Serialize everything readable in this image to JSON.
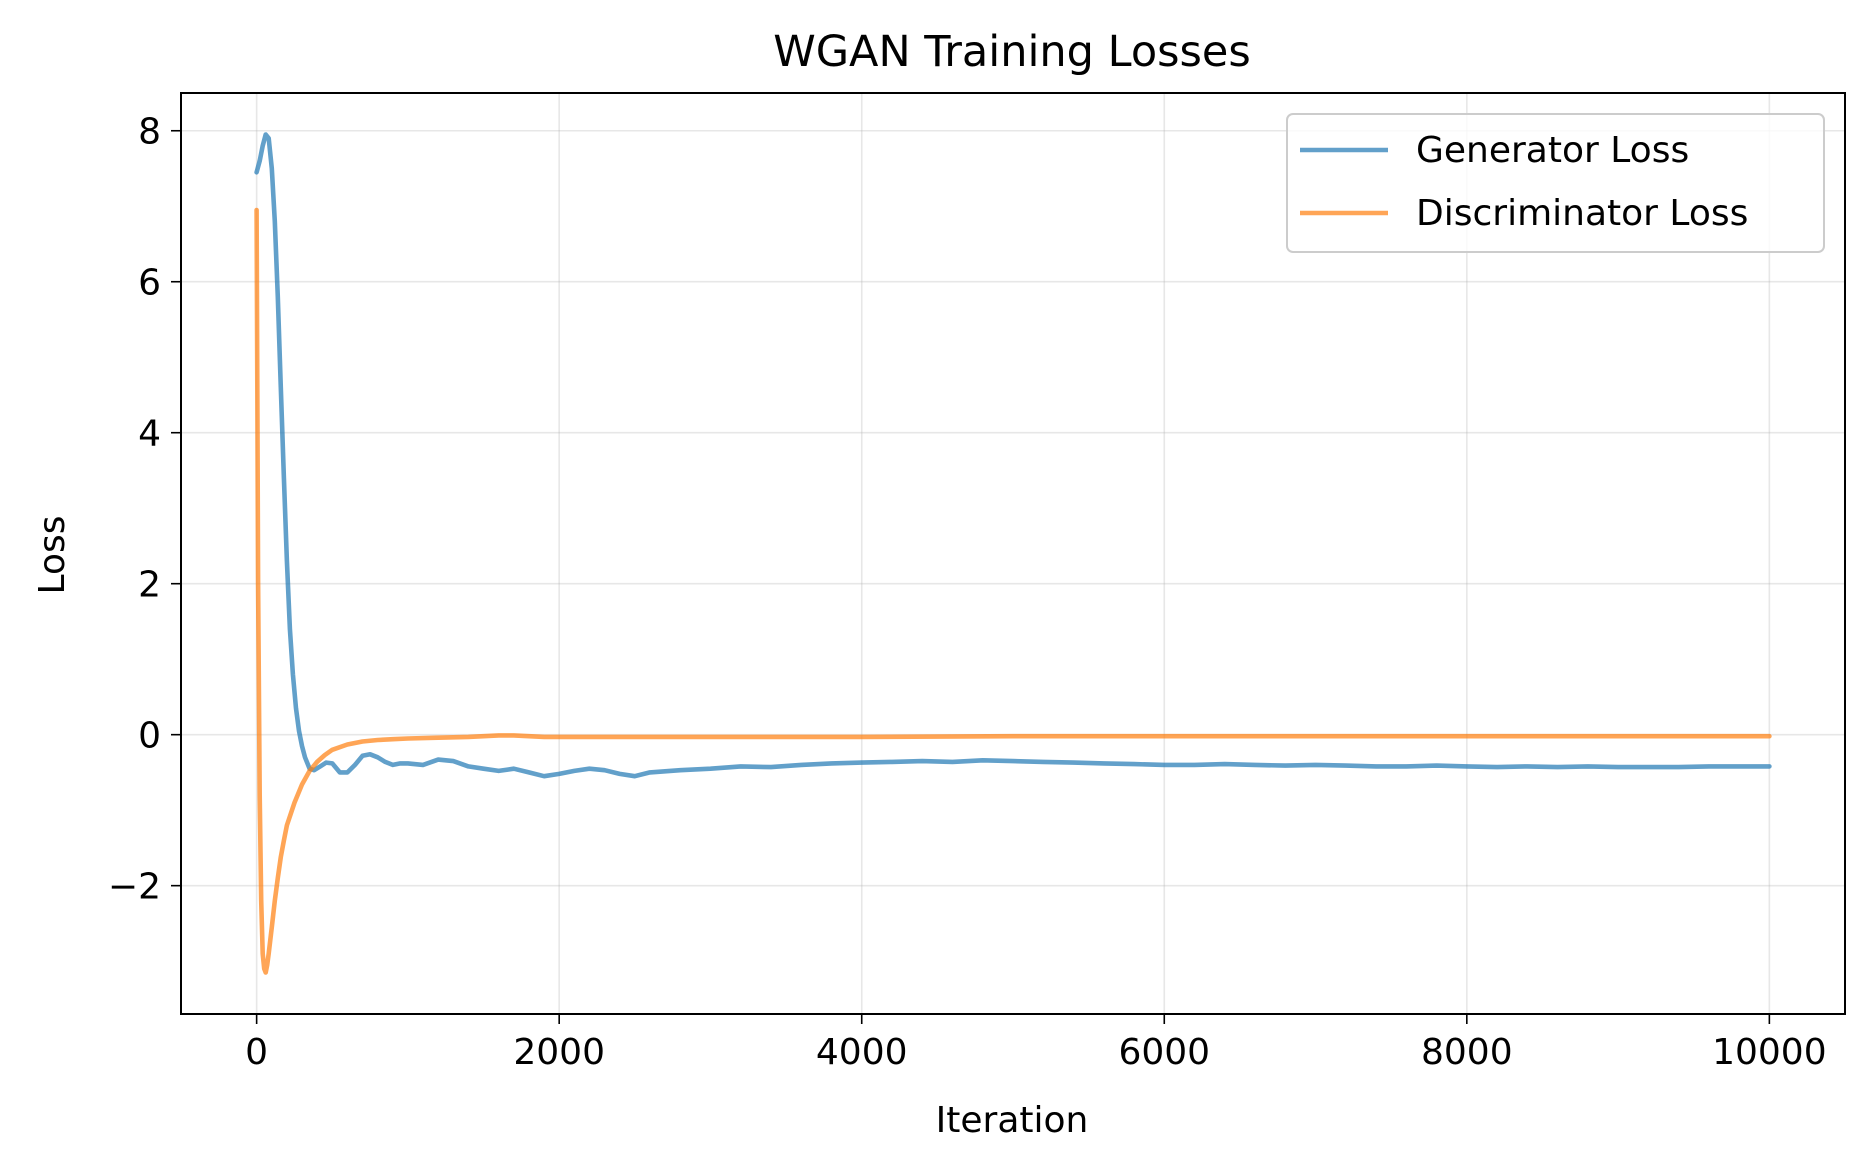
{
  "chart_data": {
    "type": "line",
    "title": "WGAN Training Losses",
    "xlabel": "Iteration",
    "ylabel": "Loss",
    "xlim": [
      -500,
      10500
    ],
    "ylim": [
      -3.7,
      8.5
    ],
    "xticks": [
      0,
      2000,
      4000,
      6000,
      8000,
      10000
    ],
    "xtick_labels": [
      "0",
      "2000",
      "4000",
      "6000",
      "8000",
      "10000"
    ],
    "yticks": [
      -2,
      0,
      2,
      4,
      6,
      8
    ],
    "ytick_labels": [
      "−2",
      "0",
      "2",
      "4",
      "6",
      "8"
    ],
    "grid": true,
    "legend_position": "top-right",
    "series": [
      {
        "name": "Generator Loss",
        "color": "#1f77b4",
        "x": [
          0,
          20,
          40,
          60,
          80,
          100,
          120,
          140,
          160,
          180,
          200,
          220,
          240,
          260,
          280,
          300,
          320,
          350,
          380,
          420,
          460,
          500,
          550,
          600,
          650,
          700,
          750,
          800,
          850,
          900,
          950,
          1000,
          1100,
          1200,
          1300,
          1400,
          1500,
          1600,
          1700,
          1800,
          1900,
          2000,
          2100,
          2200,
          2300,
          2400,
          2500,
          2600,
          2800,
          3000,
          3200,
          3400,
          3600,
          3800,
          4000,
          4200,
          4400,
          4600,
          4800,
          5000,
          5200,
          5400,
          5600,
          5800,
          6000,
          6200,
          6400,
          6600,
          6800,
          7000,
          7200,
          7400,
          7600,
          7800,
          8000,
          8200,
          8400,
          8600,
          8800,
          9000,
          9200,
          9400,
          9600,
          9800,
          10000
        ],
        "y": [
          7.45,
          7.6,
          7.8,
          7.95,
          7.9,
          7.5,
          6.8,
          5.8,
          4.6,
          3.4,
          2.3,
          1.4,
          0.8,
          0.35,
          0.05,
          -0.15,
          -0.3,
          -0.45,
          -0.47,
          -0.42,
          -0.37,
          -0.38,
          -0.5,
          -0.5,
          -0.4,
          -0.28,
          -0.26,
          -0.3,
          -0.36,
          -0.4,
          -0.38,
          -0.38,
          -0.4,
          -0.33,
          -0.35,
          -0.42,
          -0.45,
          -0.48,
          -0.45,
          -0.5,
          -0.55,
          -0.52,
          -0.48,
          -0.45,
          -0.47,
          -0.52,
          -0.55,
          -0.5,
          -0.47,
          -0.45,
          -0.42,
          -0.43,
          -0.4,
          -0.38,
          -0.37,
          -0.36,
          -0.35,
          -0.36,
          -0.34,
          -0.35,
          -0.36,
          -0.37,
          -0.38,
          -0.39,
          -0.4,
          -0.4,
          -0.39,
          -0.4,
          -0.41,
          -0.4,
          -0.41,
          -0.42,
          -0.42,
          -0.41,
          -0.42,
          -0.43,
          -0.42,
          -0.43,
          -0.42,
          -0.43,
          -0.43,
          -0.43,
          -0.42,
          -0.42,
          -0.42
        ]
      },
      {
        "name": "Discriminator Loss",
        "color": "#ff7f0e",
        "x": [
          0,
          10,
          20,
          30,
          40,
          50,
          60,
          70,
          80,
          100,
          120,
          140,
          160,
          180,
          200,
          250,
          300,
          350,
          400,
          450,
          500,
          600,
          700,
          800,
          900,
          1000,
          1200,
          1400,
          1600,
          1700,
          1800,
          1900,
          2000,
          2500,
          3000,
          4000,
          5000,
          6000,
          7000,
          8000,
          9000,
          10000
        ],
        "y": [
          6.95,
          2.0,
          -0.8,
          -2.2,
          -2.9,
          -3.1,
          -3.15,
          -3.05,
          -2.9,
          -2.55,
          -2.2,
          -1.9,
          -1.62,
          -1.4,
          -1.2,
          -0.9,
          -0.66,
          -0.48,
          -0.36,
          -0.27,
          -0.2,
          -0.13,
          -0.09,
          -0.07,
          -0.06,
          -0.05,
          -0.04,
          -0.03,
          -0.01,
          -0.01,
          -0.02,
          -0.03,
          -0.03,
          -0.03,
          -0.03,
          -0.03,
          -0.02,
          -0.02,
          -0.02,
          -0.02,
          -0.02,
          -0.02
        ]
      }
    ]
  }
}
